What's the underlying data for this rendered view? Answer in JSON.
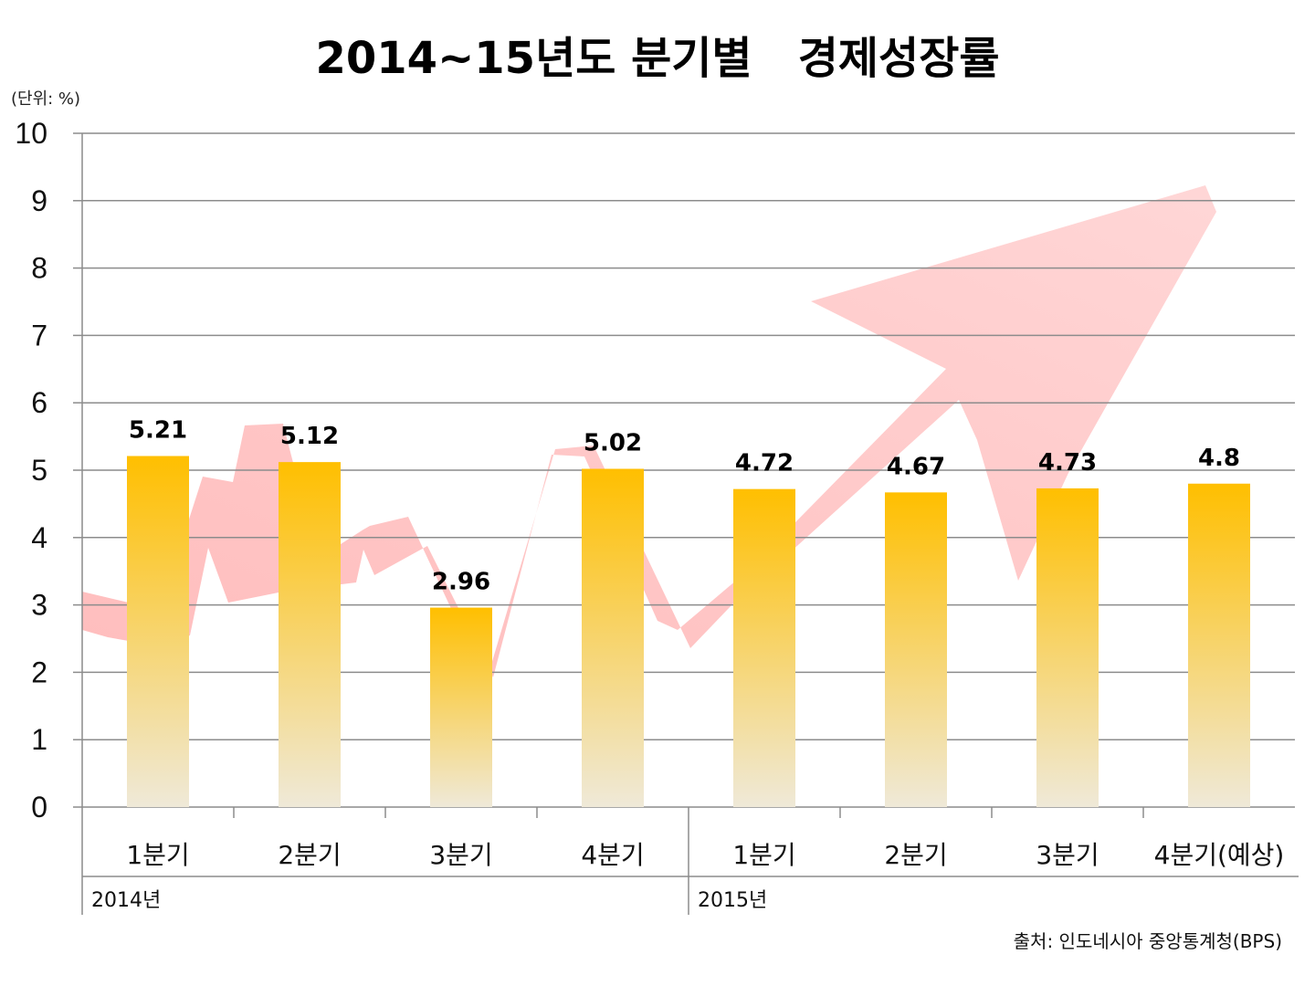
{
  "chart_data": {
    "type": "bar",
    "title": "2014~15년도 분기별   경제성장률",
    "unit": "(단위: %)",
    "categories": [
      "1분기",
      "2분기",
      "3분기",
      "4분기",
      "1분기",
      "2분기",
      "3분기",
      "4분기(예상)"
    ],
    "groups": [
      {
        "label": "2014년",
        "span": [
          0,
          3
        ]
      },
      {
        "label": "2015년",
        "span": [
          4,
          7
        ]
      }
    ],
    "values": [
      5.21,
      5.12,
      2.96,
      5.02,
      4.72,
      4.67,
      4.73,
      4.8
    ],
    "value_labels": [
      "5.21",
      "5.12",
      "2.96",
      "5.02",
      "4.72",
      "4.67",
      "4.73",
      "4.8"
    ],
    "ylim": [
      0,
      10
    ],
    "yticks": [
      "0",
      "1",
      "2",
      "3",
      "4",
      "5",
      "6",
      "7",
      "8",
      "9",
      "10"
    ],
    "grid": true,
    "legend": "none",
    "source": "출처: 인도네시아 중앙통계청(BPS)",
    "colors": {
      "bar_top": "#ffbf00",
      "bar_bottom": "#efe9d8",
      "arrow": "#ffb3b3"
    }
  }
}
